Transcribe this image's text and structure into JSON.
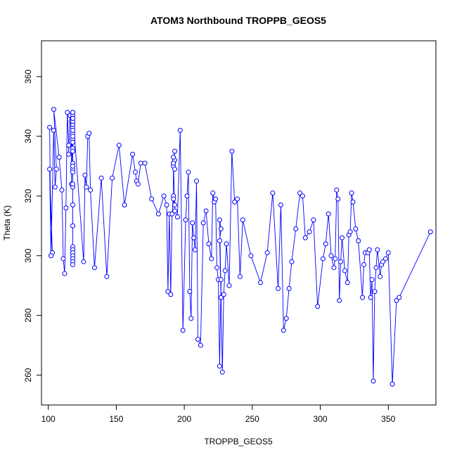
{
  "chart_data": {
    "type": "line",
    "title": "ATOM3 Northbound TROPPB_GEOS5",
    "xlabel": "TROPPB_GEOS5",
    "ylabel": "Theta (K)",
    "xlim": [
      95,
      385
    ],
    "ylim": [
      250,
      372
    ],
    "xticks": [
      100,
      150,
      200,
      250,
      300,
      350
    ],
    "yticks": [
      260,
      280,
      300,
      320,
      340,
      360
    ],
    "grid": false,
    "line_color": "#0000ff",
    "marker": "open-circle",
    "series": [
      {
        "x": [
          101,
          102,
          101,
          103,
          102,
          104,
          105,
          106,
          104,
          108,
          110,
          111,
          112,
          113,
          114,
          115,
          115,
          116,
          117,
          117,
          118,
          118,
          118,
          118,
          118,
          118,
          118,
          118,
          118,
          118,
          118,
          118,
          118,
          118,
          118,
          118,
          118,
          118,
          118,
          118,
          118,
          118,
          118,
          118,
          118,
          118,
          118,
          118,
          118,
          118,
          118,
          126,
          127,
          128,
          129,
          130,
          131,
          134,
          139,
          143,
          147,
          152,
          156,
          162,
          164,
          165,
          166,
          168,
          171,
          176,
          181,
          185,
          187,
          188,
          189,
          190,
          191,
          192,
          192,
          193,
          192,
          193,
          192,
          193,
          192,
          193,
          192,
          193,
          195,
          197,
          199,
          201,
          202,
          203,
          204,
          205,
          206,
          207,
          208,
          209,
          210,
          212,
          214,
          216,
          218,
          220,
          221,
          222,
          223,
          224,
          225,
          226,
          227,
          227,
          226,
          227,
          226,
          228,
          229,
          230,
          231,
          233,
          235,
          237,
          239,
          241,
          243,
          249,
          256,
          261,
          265,
          269,
          271,
          273,
          275,
          277,
          279,
          282,
          285,
          287,
          289,
          292,
          295,
          298,
          302,
          304,
          306,
          308,
          310,
          311,
          312,
          313,
          314,
          315,
          316,
          318,
          320,
          321,
          322,
          323,
          324,
          326,
          328,
          331,
          332,
          333,
          335,
          336,
          337,
          338,
          339,
          340,
          341,
          342,
          344,
          345,
          346,
          348,
          350,
          353,
          356,
          358,
          381
        ],
        "y": [
          343,
          300,
          329,
          301,
          300,
          342,
          323,
          329,
          349,
          333,
          322,
          299,
          294,
          316,
          348,
          337,
          334,
          347,
          345,
          324,
          348,
          347,
          346,
          344,
          343,
          341,
          339,
          336,
          331,
          329,
          328,
          323,
          317,
          310,
          303,
          302,
          301,
          300,
          299,
          298,
          297,
          324,
          330,
          335,
          338,
          340,
          342,
          344,
          345,
          346,
          348,
          298,
          327,
          323,
          340,
          341,
          322,
          296,
          326,
          293,
          326,
          337,
          317,
          334,
          328,
          325,
          324,
          331,
          331,
          319,
          314,
          320,
          317,
          288,
          314,
          287,
          314,
          320,
          330,
          332,
          331,
          329,
          333,
          335,
          331,
          317,
          319,
          315,
          313,
          342,
          275,
          312,
          320,
          328,
          288,
          279,
          311,
          306,
          302,
          325,
          272,
          270,
          311,
          315,
          304,
          299,
          321,
          318,
          319,
          296,
          292,
          263,
          292,
          286,
          305,
          309,
          312,
          261,
          287,
          295,
          304,
          290,
          335,
          318,
          319,
          293,
          312,
          300,
          291,
          301,
          321,
          289,
          317,
          275,
          279,
          289,
          298,
          309,
          321,
          320,
          306,
          308,
          312,
          283,
          299,
          304,
          314,
          300,
          296,
          299,
          322,
          319,
          285,
          298,
          306,
          295,
          291,
          307,
          308,
          321,
          318,
          309,
          305,
          286,
          297,
          301,
          301,
          302,
          286,
          292,
          258,
          288,
          296,
          302,
          293,
          297,
          298,
          299,
          301,
          257,
          285,
          286,
          308
        ]
      }
    ]
  }
}
